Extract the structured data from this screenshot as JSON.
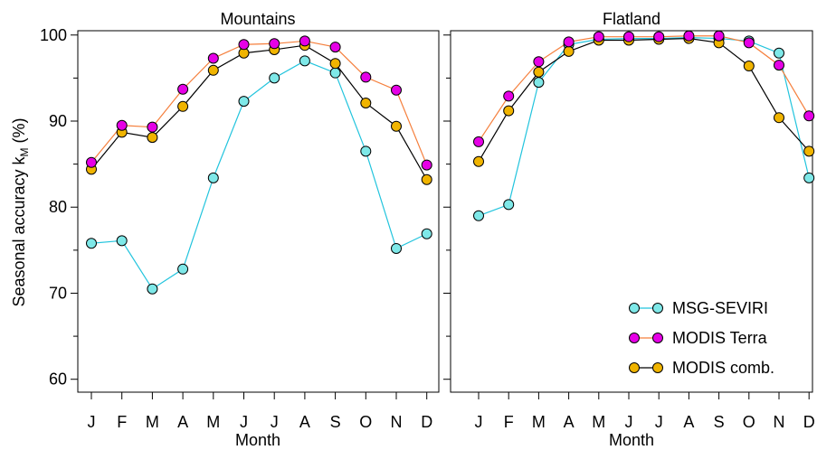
{
  "chart_data": [
    {
      "type": "line",
      "title": "Mountains",
      "xlabel": "Month",
      "ylabel": "Seasonal accuracy k",
      "ylabel_subscript": "M",
      "ylabel_suffix": " (%)",
      "categories": [
        "J",
        "F",
        "M",
        "A",
        "M",
        "J",
        "J",
        "A",
        "S",
        "O",
        "N",
        "D"
      ],
      "yticks": [
        60,
        70,
        80,
        90,
        100
      ],
      "ylim": [
        58.5,
        100.5
      ],
      "grid": false,
      "series": [
        {
          "name": "MSG-SEVIRI",
          "values": [
            75.8,
            76.1,
            70.5,
            72.8,
            83.4,
            92.3,
            95.0,
            97.0,
            95.6,
            86.5,
            75.2,
            76.9
          ]
        },
        {
          "name": "MODIS Terra",
          "values": [
            85.2,
            89.5,
            89.3,
            93.7,
            97.3,
            98.9,
            99.0,
            99.3,
            98.6,
            95.1,
            93.6,
            84.9
          ]
        },
        {
          "name": "MODIS comb.",
          "values": [
            84.4,
            88.7,
            88.1,
            91.7,
            95.9,
            97.9,
            98.3,
            98.8,
            96.7,
            92.1,
            89.4,
            83.2
          ]
        }
      ]
    },
    {
      "type": "line",
      "title": "Flatland",
      "xlabel": "Month",
      "categories": [
        "J",
        "F",
        "M",
        "A",
        "M",
        "J",
        "J",
        "A",
        "S",
        "O",
        "N",
        "D"
      ],
      "ylim": [
        58.5,
        100.5
      ],
      "grid": false,
      "series": [
        {
          "name": "MSG-SEVIRI",
          "values": [
            79.0,
            80.3,
            94.5,
            98.9,
            99.5,
            99.6,
            99.6,
            99.7,
            99.6,
            99.3,
            97.9,
            83.4
          ]
        },
        {
          "name": "MODIS Terra",
          "values": [
            87.6,
            92.9,
            96.9,
            99.2,
            99.8,
            99.8,
            99.8,
            99.9,
            99.9,
            99.1,
            96.5,
            90.6
          ]
        },
        {
          "name": "MODIS comb.",
          "values": [
            85.3,
            91.2,
            95.7,
            98.1,
            99.4,
            99.4,
            99.5,
            99.6,
            99.1,
            96.4,
            90.4,
            86.5
          ]
        }
      ]
    }
  ],
  "legend": {
    "placement": "bottom-right",
    "items": [
      {
        "label": "MSG-SEVIRI",
        "line_color": "#22c4dd",
        "marker_fill": "#7ee8e8"
      },
      {
        "label": "MODIS Terra",
        "line_color": "#f57f3c",
        "marker_fill": "#e600e6"
      },
      {
        "label": "MODIS comb.",
        "line_color": "#000000",
        "marker_fill": "#f0b400"
      }
    ]
  }
}
